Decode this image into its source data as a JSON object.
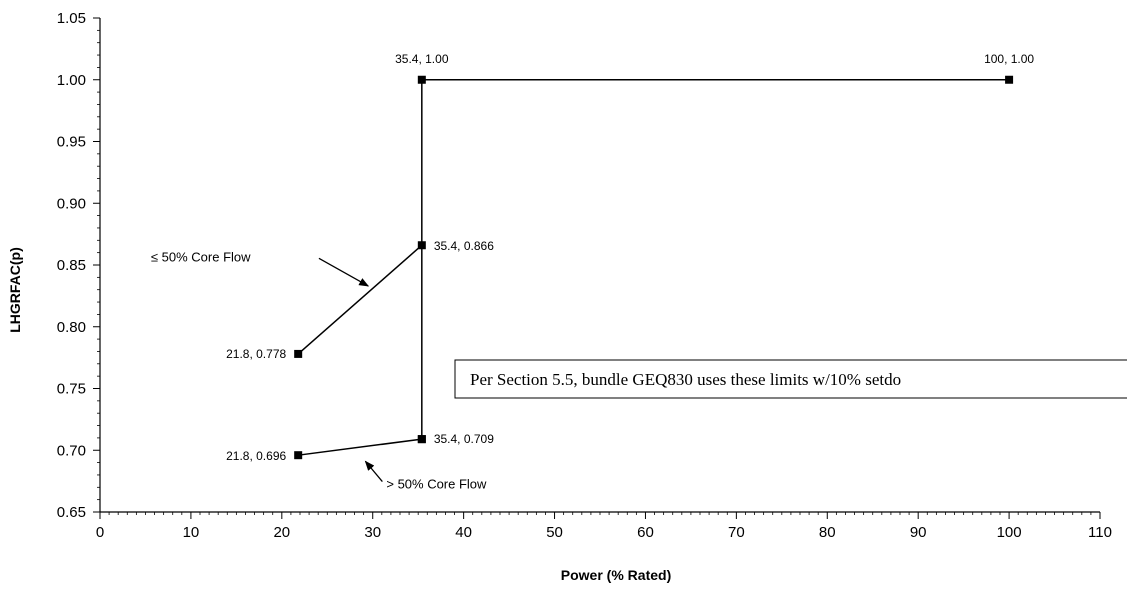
{
  "chart_data": {
    "type": "line",
    "title": "",
    "xlabel": "Power (% Rated)",
    "ylabel": "LHGRFAC(p)",
    "xlim": [
      0,
      110
    ],
    "ylim": [
      0.65,
      1.05
    ],
    "x_ticks": [
      "0",
      "10",
      "20",
      "30",
      "40",
      "50",
      "60",
      "70",
      "80",
      "90",
      "100",
      "110"
    ],
    "y_ticks": [
      "0.65",
      "0.70",
      "0.75",
      "0.80",
      "0.85",
      "0.90",
      "0.95",
      "1.00",
      "1.05"
    ],
    "grid": false,
    "series": [
      {
        "name": "",
        "points": [
          {
            "x": 21.8,
            "y": 0.778,
            "label": "21.8, 0.778"
          },
          {
            "x": 35.4,
            "y": 0.866,
            "label": "35.4, 0.866"
          }
        ]
      },
      {
        "name": "",
        "points": [
          {
            "x": 21.8,
            "y": 0.696,
            "label": "21.8, 0.696"
          },
          {
            "x": 35.4,
            "y": 0.709,
            "label": "35.4, 0.709"
          }
        ]
      },
      {
        "name": "",
        "points": [
          {
            "x": 35.4,
            "y": 0.709,
            "label": ""
          },
          {
            "x": 35.4,
            "y": 1.0,
            "label": "35.4, 1.00"
          },
          {
            "x": 100,
            "y": 1.0,
            "label": "100, 1.00"
          }
        ]
      }
    ],
    "annotations": [
      {
        "text": "≤ 50% Core Flow",
        "x": 5.6,
        "y": 0.857,
        "arrow_to": {
          "x": 29.5,
          "y": 0.833
        }
      },
      {
        "text": "> 50% Core Flow",
        "x": 31.5,
        "y": 0.673,
        "arrow_to": {
          "x": 29.2,
          "y": 0.691
        }
      }
    ],
    "note": "Per Section 5.5, bundle GEQ830 uses these limits w/10% setdo"
  }
}
